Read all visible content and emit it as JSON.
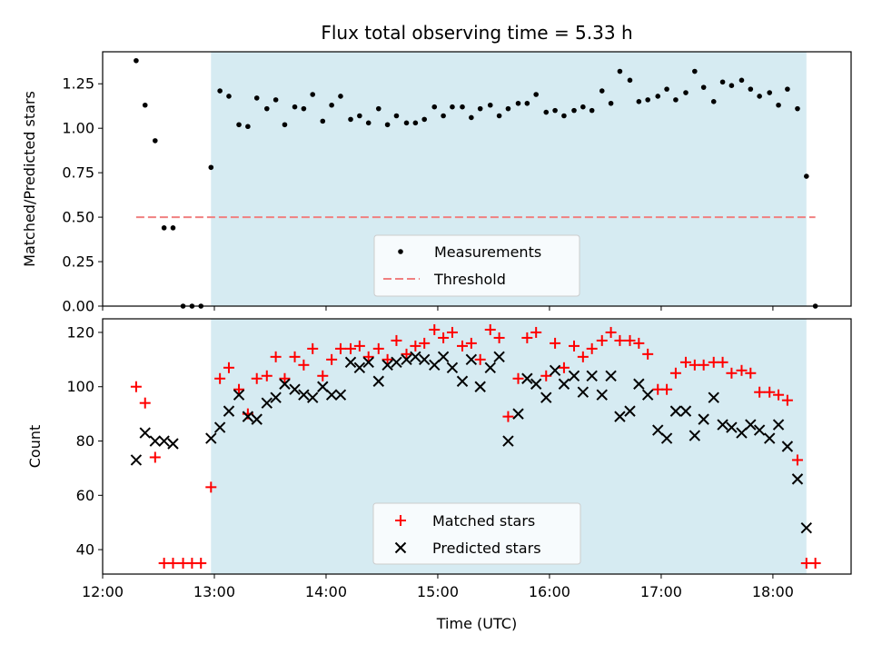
{
  "title": "Flux total observing time = 5.33 h",
  "chart_data": [
    {
      "type": "scatter",
      "ylabel": "Matched/Predicted stars",
      "ylim": [
        0,
        1.43
      ],
      "yticks": [
        "0.00",
        "0.25",
        "0.50",
        "0.75",
        "1.00",
        "1.25"
      ],
      "ytick_values": [
        0,
        0.25,
        0.5,
        0.75,
        1.0,
        1.25
      ],
      "xlim": [
        12.0,
        18.7
      ],
      "shaded_span": {
        "from": 12.97,
        "to": 18.3,
        "color": "#add8e6"
      },
      "legend_position": "lower-center",
      "legend": [
        "Measurements",
        "Threshold"
      ],
      "threshold": {
        "name": "Threshold",
        "value": 0.5,
        "x_from": 12.3,
        "x_to": 18.38,
        "color": "#f08080",
        "style": "dashed"
      },
      "measurements": {
        "name": "Measurements",
        "color": "#000000",
        "points": [
          [
            12.3,
            1.38
          ],
          [
            12.38,
            1.13
          ],
          [
            12.47,
            0.93
          ],
          [
            12.55,
            0.44
          ],
          [
            12.63,
            0.44
          ],
          [
            12.72,
            0.0
          ],
          [
            12.8,
            0.0
          ],
          [
            12.88,
            0.0
          ],
          [
            12.97,
            0.78
          ],
          [
            13.05,
            1.21
          ],
          [
            13.13,
            1.18
          ],
          [
            13.22,
            1.02
          ],
          [
            13.3,
            1.01
          ],
          [
            13.38,
            1.17
          ],
          [
            13.47,
            1.11
          ],
          [
            13.55,
            1.16
          ],
          [
            13.63,
            1.02
          ],
          [
            13.72,
            1.12
          ],
          [
            13.8,
            1.11
          ],
          [
            13.88,
            1.19
          ],
          [
            13.97,
            1.04
          ],
          [
            14.05,
            1.13
          ],
          [
            14.13,
            1.18
          ],
          [
            14.22,
            1.05
          ],
          [
            14.3,
            1.07
          ],
          [
            14.38,
            1.03
          ],
          [
            14.47,
            1.11
          ],
          [
            14.55,
            1.02
          ],
          [
            14.63,
            1.07
          ],
          [
            14.72,
            1.03
          ],
          [
            14.8,
            1.03
          ],
          [
            14.88,
            1.05
          ],
          [
            14.97,
            1.12
          ],
          [
            15.05,
            1.07
          ],
          [
            15.13,
            1.12
          ],
          [
            15.22,
            1.12
          ],
          [
            15.3,
            1.06
          ],
          [
            15.38,
            1.11
          ],
          [
            15.47,
            1.13
          ],
          [
            15.55,
            1.07
          ],
          [
            15.63,
            1.11
          ],
          [
            15.72,
            1.14
          ],
          [
            15.8,
            1.14
          ],
          [
            15.88,
            1.19
          ],
          [
            15.97,
            1.09
          ],
          [
            16.05,
            1.1
          ],
          [
            16.13,
            1.07
          ],
          [
            16.22,
            1.1
          ],
          [
            16.3,
            1.12
          ],
          [
            16.38,
            1.1
          ],
          [
            16.47,
            1.21
          ],
          [
            16.55,
            1.14
          ],
          [
            16.63,
            1.32
          ],
          [
            16.72,
            1.27
          ],
          [
            16.8,
            1.15
          ],
          [
            16.88,
            1.16
          ],
          [
            16.97,
            1.18
          ],
          [
            17.05,
            1.22
          ],
          [
            17.13,
            1.16
          ],
          [
            17.22,
            1.2
          ],
          [
            17.3,
            1.32
          ],
          [
            17.38,
            1.23
          ],
          [
            17.47,
            1.15
          ],
          [
            17.55,
            1.26
          ],
          [
            17.63,
            1.24
          ],
          [
            17.72,
            1.27
          ],
          [
            17.8,
            1.22
          ],
          [
            17.88,
            1.18
          ],
          [
            17.97,
            1.2
          ],
          [
            18.05,
            1.13
          ],
          [
            18.13,
            1.22
          ],
          [
            18.22,
            1.11
          ],
          [
            18.3,
            0.73
          ],
          [
            18.38,
            0.0
          ]
        ]
      }
    },
    {
      "type": "scatter",
      "xlabel": "Time (UTC)",
      "ylabel": "Count",
      "ylim": [
        31,
        125
      ],
      "yticks": [
        "40",
        "60",
        "80",
        "100",
        "120"
      ],
      "ytick_values": [
        40,
        60,
        80,
        100,
        120
      ],
      "xlim": [
        12.0,
        18.7
      ],
      "xticks": [
        "12:00",
        "13:00",
        "14:00",
        "15:00",
        "16:00",
        "17:00",
        "18:00"
      ],
      "xtick_values": [
        12,
        13,
        14,
        15,
        16,
        17,
        18
      ],
      "shaded_span": {
        "from": 12.97,
        "to": 18.3,
        "color": "#add8e6"
      },
      "legend_position": "lower-center",
      "legend": [
        "Matched stars",
        "Predicted stars"
      ],
      "series": [
        {
          "name": "Matched stars",
          "marker": "plus",
          "color": "#ff0000",
          "points": [
            [
              12.3,
              100
            ],
            [
              12.38,
              94
            ],
            [
              12.47,
              74
            ],
            [
              12.55,
              35
            ],
            [
              12.63,
              35
            ],
            [
              12.72,
              35
            ],
            [
              12.8,
              35
            ],
            [
              12.88,
              35
            ],
            [
              12.97,
              63
            ],
            [
              13.05,
              103
            ],
            [
              13.13,
              107
            ],
            [
              13.22,
              99
            ],
            [
              13.3,
              90
            ],
            [
              13.38,
              103
            ],
            [
              13.47,
              104
            ],
            [
              13.55,
              111
            ],
            [
              13.63,
              103
            ],
            [
              13.72,
              111
            ],
            [
              13.8,
              108
            ],
            [
              13.88,
              114
            ],
            [
              13.97,
              104
            ],
            [
              14.05,
              110
            ],
            [
              14.13,
              114
            ],
            [
              14.22,
              114
            ],
            [
              14.3,
              115
            ],
            [
              14.38,
              111
            ],
            [
              14.47,
              114
            ],
            [
              14.55,
              110
            ],
            [
              14.63,
              117
            ],
            [
              14.72,
              112
            ],
            [
              14.8,
              115
            ],
            [
              14.88,
              116
            ],
            [
              14.97,
              121
            ],
            [
              15.05,
              118
            ],
            [
              15.13,
              120
            ],
            [
              15.22,
              115
            ],
            [
              15.3,
              116
            ],
            [
              15.38,
              110
            ],
            [
              15.47,
              121
            ],
            [
              15.55,
              118
            ],
            [
              15.63,
              89
            ],
            [
              15.72,
              103
            ],
            [
              15.8,
              118
            ],
            [
              15.88,
              120
            ],
            [
              15.97,
              104
            ],
            [
              16.05,
              116
            ],
            [
              16.13,
              107
            ],
            [
              16.22,
              115
            ],
            [
              16.3,
              111
            ],
            [
              16.38,
              114
            ],
            [
              16.47,
              117
            ],
            [
              16.55,
              120
            ],
            [
              16.63,
              117
            ],
            [
              16.72,
              117
            ],
            [
              16.8,
              116
            ],
            [
              16.88,
              112
            ],
            [
              16.97,
              99
            ],
            [
              17.05,
              99
            ],
            [
              17.13,
              105
            ],
            [
              17.22,
              109
            ],
            [
              17.3,
              108
            ],
            [
              17.38,
              108
            ],
            [
              17.47,
              109
            ],
            [
              17.55,
              109
            ],
            [
              17.63,
              105
            ],
            [
              17.72,
              106
            ],
            [
              17.8,
              105
            ],
            [
              17.88,
              98
            ],
            [
              17.97,
              98
            ],
            [
              18.05,
              97
            ],
            [
              18.13,
              95
            ],
            [
              18.22,
              73
            ],
            [
              18.3,
              35
            ],
            [
              18.38,
              35
            ]
          ]
        },
        {
          "name": "Predicted stars",
          "marker": "cross",
          "color": "#000000",
          "points": [
            [
              12.3,
              73
            ],
            [
              12.38,
              83
            ],
            [
              12.47,
              80
            ],
            [
              12.55,
              80
            ],
            [
              12.63,
              79
            ],
            [
              12.97,
              81
            ],
            [
              13.05,
              85
            ],
            [
              13.13,
              91
            ],
            [
              13.22,
              97
            ],
            [
              13.3,
              89
            ],
            [
              13.38,
              88
            ],
            [
              13.47,
              94
            ],
            [
              13.55,
              96
            ],
            [
              13.63,
              101
            ],
            [
              13.72,
              99
            ],
            [
              13.8,
              97
            ],
            [
              13.88,
              96
            ],
            [
              13.97,
              100
            ],
            [
              14.05,
              97
            ],
            [
              14.13,
              97
            ],
            [
              14.22,
              109
            ],
            [
              14.3,
              107
            ],
            [
              14.38,
              109
            ],
            [
              14.47,
              102
            ],
            [
              14.55,
              108
            ],
            [
              14.63,
              109
            ],
            [
              14.72,
              110
            ],
            [
              14.8,
              111
            ],
            [
              14.88,
              110
            ],
            [
              14.97,
              108
            ],
            [
              15.05,
              111
            ],
            [
              15.13,
              107
            ],
            [
              15.22,
              102
            ],
            [
              15.3,
              110
            ],
            [
              15.38,
              100
            ],
            [
              15.47,
              107
            ],
            [
              15.55,
              111
            ],
            [
              15.63,
              80
            ],
            [
              15.72,
              90
            ],
            [
              15.8,
              103
            ],
            [
              15.88,
              101
            ],
            [
              15.97,
              96
            ],
            [
              16.05,
              106
            ],
            [
              16.13,
              101
            ],
            [
              16.22,
              104
            ],
            [
              16.3,
              98
            ],
            [
              16.38,
              104
            ],
            [
              16.47,
              97
            ],
            [
              16.55,
              104
            ],
            [
              16.63,
              89
            ],
            [
              16.72,
              91
            ],
            [
              16.8,
              101
            ],
            [
              16.88,
              97
            ],
            [
              16.97,
              84
            ],
            [
              17.05,
              81
            ],
            [
              17.13,
              91
            ],
            [
              17.22,
              91
            ],
            [
              17.3,
              82
            ],
            [
              17.38,
              88
            ],
            [
              17.47,
              96
            ],
            [
              17.55,
              86
            ],
            [
              17.63,
              85
            ],
            [
              17.72,
              83
            ],
            [
              17.8,
              86
            ],
            [
              17.88,
              84
            ],
            [
              17.97,
              81
            ],
            [
              18.05,
              86
            ],
            [
              18.13,
              78
            ],
            [
              18.22,
              66
            ],
            [
              18.3,
              48
            ]
          ]
        }
      ]
    }
  ]
}
